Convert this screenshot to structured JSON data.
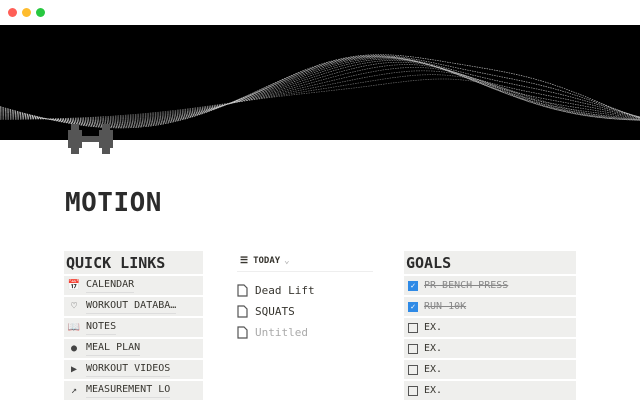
{
  "window": {
    "controls": [
      {
        "name": "close",
        "color": "#ff5f57"
      },
      {
        "name": "minimize",
        "color": "#febc2e"
      },
      {
        "name": "zoom",
        "color": "#28c840"
      }
    ]
  },
  "page": {
    "title": "MOTION",
    "icon": "dumbbell-icon"
  },
  "quick_links": {
    "title": "QUICK LINKS",
    "items": [
      {
        "icon": "calendar-icon",
        "glyph": "📅",
        "label": "CALENDAR"
      },
      {
        "icon": "heart-icon",
        "glyph": "♡",
        "label": "WORKOUT DATABA…"
      },
      {
        "icon": "book-icon",
        "glyph": "📖",
        "label": "NOTES"
      },
      {
        "icon": "apple-icon",
        "glyph": "●",
        "label": "MEAL PLAN"
      },
      {
        "icon": "play-icon",
        "glyph": "▶",
        "label": "WORKOUT VIDEOS"
      },
      {
        "icon": "chart-icon",
        "glyph": "↗",
        "label": "MEASUREMENT LO"
      }
    ]
  },
  "today": {
    "view_label": "TODAY",
    "items": [
      {
        "label": "Dead Lift",
        "empty": false
      },
      {
        "label": "SQUATS",
        "empty": false
      },
      {
        "label": "Untitled",
        "empty": true
      }
    ]
  },
  "goals": {
    "title": "GOALS",
    "accent": "#2e8ae6",
    "items": [
      {
        "label": "PR BENCH PRESS",
        "checked": true
      },
      {
        "label": "RUN 10K",
        "checked": true
      },
      {
        "label": "EX.",
        "checked": false
      },
      {
        "label": "EX.",
        "checked": false
      },
      {
        "label": "EX.",
        "checked": false
      },
      {
        "label": "EX.",
        "checked": false
      }
    ]
  }
}
